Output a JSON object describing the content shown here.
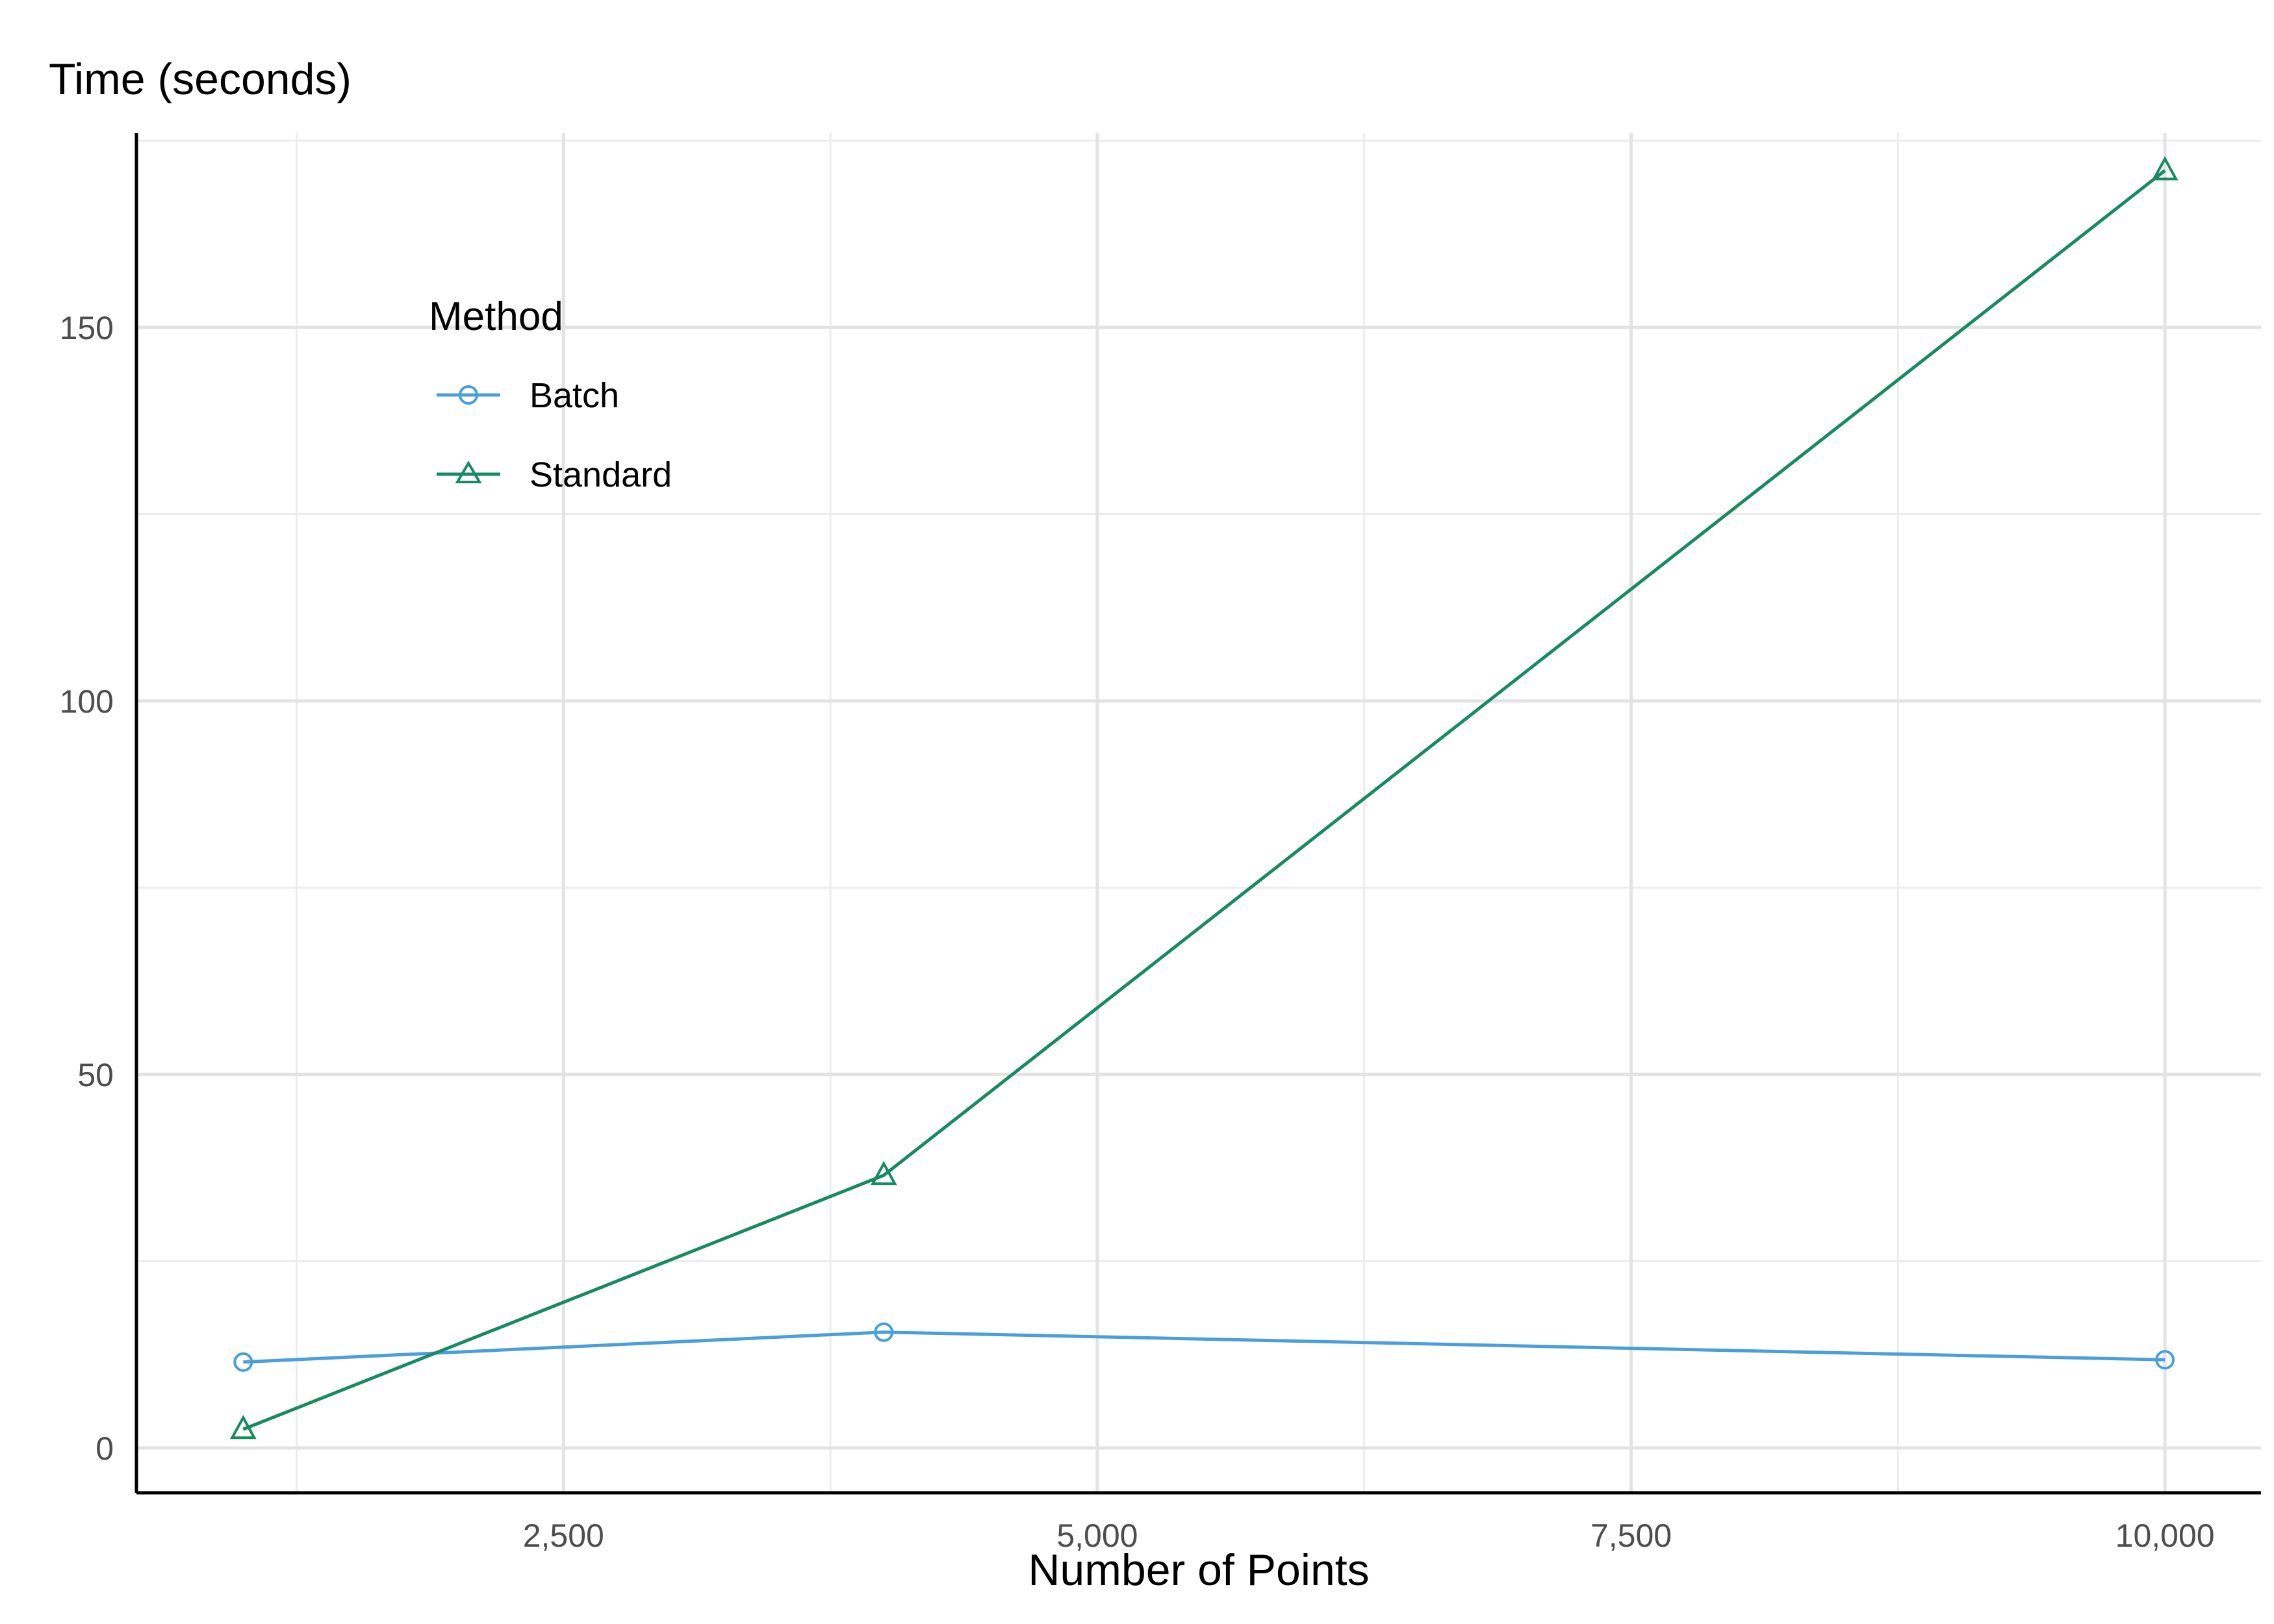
{
  "chart_data": {
    "type": "line",
    "title": "",
    "ylabel": "Time (seconds)",
    "xlabel": "Number of Points",
    "xlim": [
      500,
      10450
    ],
    "ylim": [
      -6,
      176
    ],
    "x_ticks": [
      2500,
      5000,
      7500,
      10000
    ],
    "x_tick_labels": [
      "2,500",
      "5,000",
      "7,500",
      "10,000"
    ],
    "y_ticks": [
      0,
      50,
      100,
      150
    ],
    "y_tick_labels": [
      "0",
      "50",
      "100",
      "150"
    ],
    "grid": true,
    "legend": {
      "title": "Method",
      "position": "top-left"
    },
    "series": [
      {
        "name": "Batch",
        "color": "#4A9FDA",
        "marker": "circle",
        "points": [
          {
            "x": 1000,
            "y": 11.5
          },
          {
            "x": 4000,
            "y": 15.5
          },
          {
            "x": 10000,
            "y": 11.8
          }
        ]
      },
      {
        "name": "Standard",
        "color": "#178A60",
        "marker": "triangle",
        "points": [
          {
            "x": 1000,
            "y": 2.5
          },
          {
            "x": 4000,
            "y": 36.5
          },
          {
            "x": 10000,
            "y": 171
          }
        ]
      }
    ]
  }
}
